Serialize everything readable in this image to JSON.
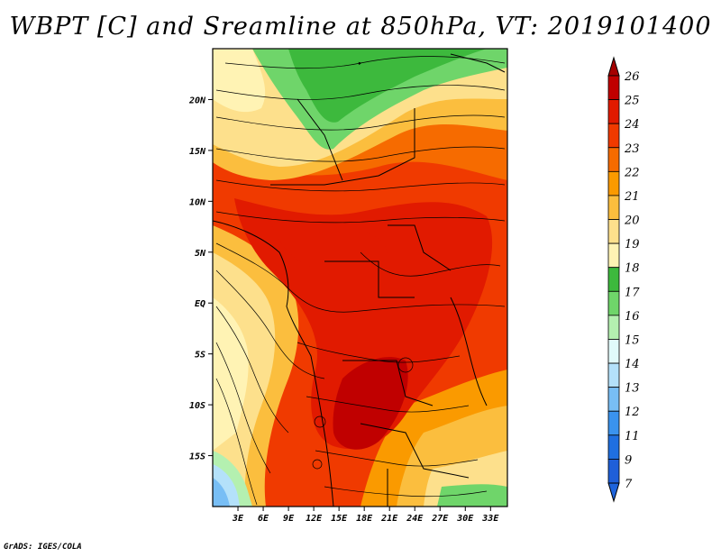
{
  "title": "WBPT [C] and Sreamline at 850hPa, VT: 2019101400",
  "footer": "GrADS: IGES/COLA",
  "map": {
    "lon_range": [
      0,
      35
    ],
    "lat_range": [
      -20,
      25
    ],
    "x_ticks": [
      {
        "lon": 3,
        "label": "3E"
      },
      {
        "lon": 6,
        "label": "6E"
      },
      {
        "lon": 9,
        "label": "9E"
      },
      {
        "lon": 12,
        "label": "12E"
      },
      {
        "lon": 15,
        "label": "15E"
      },
      {
        "lon": 18,
        "label": "18E"
      },
      {
        "lon": 21,
        "label": "21E"
      },
      {
        "lon": 24,
        "label": "24E"
      },
      {
        "lon": 27,
        "label": "27E"
      },
      {
        "lon": 30,
        "label": "30E"
      },
      {
        "lon": 33,
        "label": "33E"
      }
    ],
    "y_ticks": [
      {
        "lat": 20,
        "label": "20N"
      },
      {
        "lat": 15,
        "label": "15N"
      },
      {
        "lat": 10,
        "label": "10N"
      },
      {
        "lat": 5,
        "label": "5N"
      },
      {
        "lat": 0,
        "label": "EQ"
      },
      {
        "lat": -5,
        "label": "5S"
      },
      {
        "lat": -10,
        "label": "10S"
      },
      {
        "lat": -15,
        "label": "15S"
      }
    ]
  },
  "colorbar": {
    "levels": [
      {
        "label": "26",
        "color": "#a50000"
      },
      {
        "label": "25",
        "color": "#c00000"
      },
      {
        "label": "24",
        "color": "#e11a00"
      },
      {
        "label": "23",
        "color": "#f03a00"
      },
      {
        "label": "22",
        "color": "#f66b00"
      },
      {
        "label": "21",
        "color": "#fa9a00"
      },
      {
        "label": "20",
        "color": "#fbbe3e"
      },
      {
        "label": "19",
        "color": "#fde08c"
      },
      {
        "label": "18",
        "color": "#fff3b4"
      },
      {
        "label": "17",
        "color": "#3db93d"
      },
      {
        "label": "16",
        "color": "#6fd56a"
      },
      {
        "label": "15",
        "color": "#b4f0b0"
      },
      {
        "label": "14",
        "color": "#e1fafa"
      },
      {
        "label": "13",
        "color": "#b4e1fa"
      },
      {
        "label": "12",
        "color": "#78bef5"
      },
      {
        "label": "11",
        "color": "#3a93ee"
      },
      {
        "label": "9",
        "color": "#1f6fe0"
      },
      {
        "label": "7",
        "color": "#1f5fd8"
      }
    ],
    "top_triangle_color": "#a50000",
    "bottom_triangle_color": "#1e64dc"
  }
}
